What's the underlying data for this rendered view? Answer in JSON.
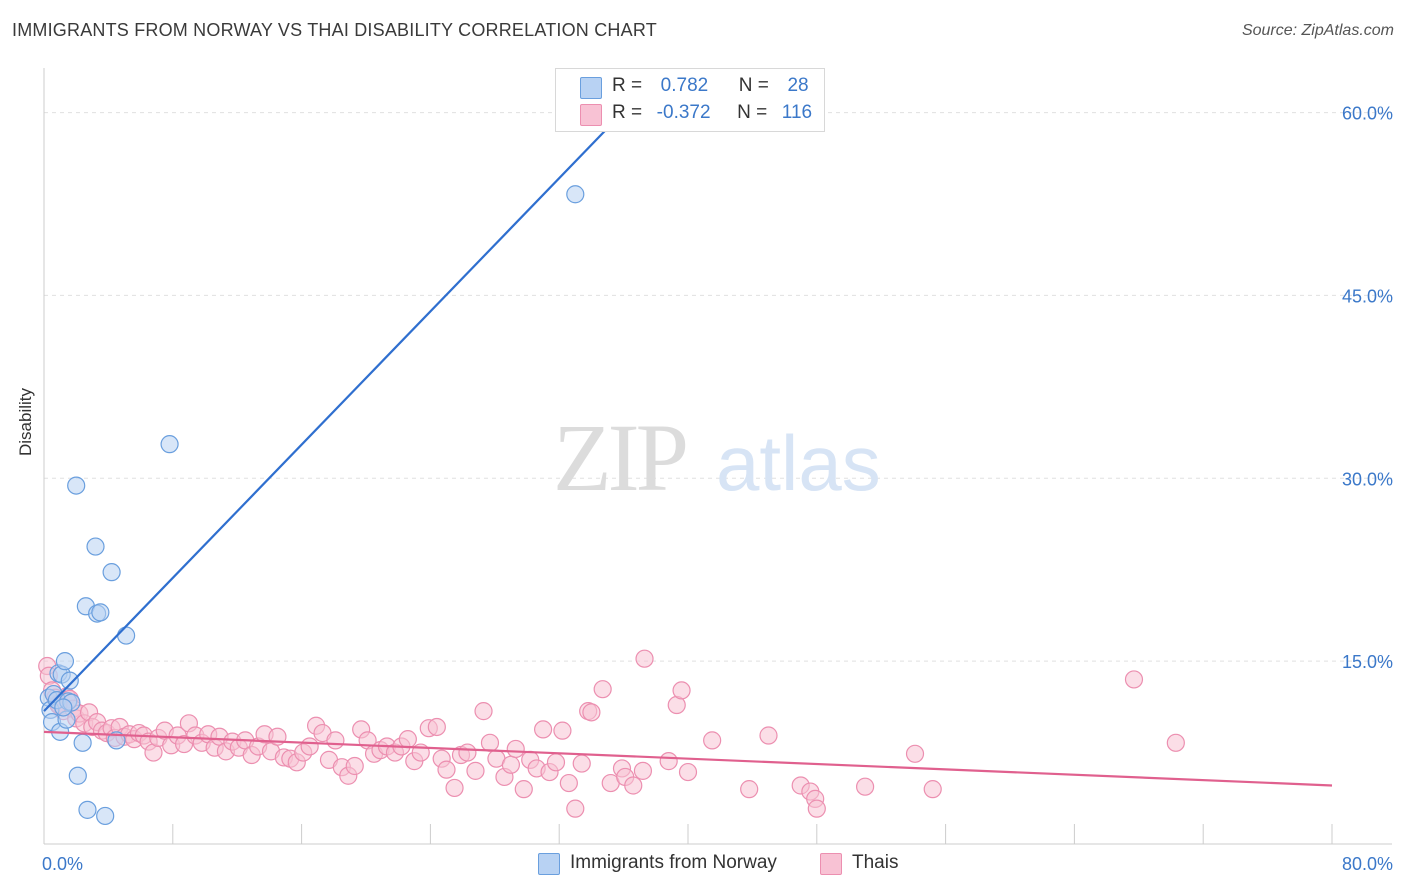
{
  "header": {
    "title": "IMMIGRANTS FROM NORWAY VS THAI DISABILITY CORRELATION CHART",
    "source": "Source: ZipAtlas.com"
  },
  "watermark": {
    "zip": "ZIP",
    "atlas": "atlas"
  },
  "legend": {
    "rows": [
      {
        "r_label": "R =",
        "r_value": "0.782",
        "n_label": "N =",
        "n_value": "28"
      },
      {
        "r_label": "R =",
        "r_value": "-0.372",
        "n_label": "N =",
        "n_value": "116"
      }
    ]
  },
  "colors": {
    "norway": "#6a9fde",
    "norway_fill": "#b8d2f3",
    "norway_line": "#2f6fcf",
    "thai": "#ec8fb0",
    "thai_fill": "#f8c2d4",
    "thai_line": "#e0608e",
    "tick_text": "#3b78c9",
    "grid": "#e0e0e0"
  },
  "chart_data": {
    "type": "scatter",
    "title": "IMMIGRANTS FROM NORWAY VS THAI DISABILITY CORRELATION CHART",
    "xlabel": "",
    "ylabel": "Disability",
    "xlim": [
      0,
      80
    ],
    "ylim": [
      0,
      63
    ],
    "x_tick_labels": [
      "0.0%",
      "80.0%"
    ],
    "y_ticks": [
      15,
      30,
      45,
      60
    ],
    "y_tick_labels": [
      "15.0%",
      "30.0%",
      "45.0%",
      "60.0%"
    ],
    "grid": true,
    "legend_position": "top-center",
    "series": [
      {
        "name": "Immigrants from Norway",
        "r": 0.782,
        "n": 28,
        "trend": {
          "x": [
            0,
            35.5
          ],
          "y": [
            10.9,
            59.4
          ]
        },
        "points": [
          [
            0.3,
            12.0
          ],
          [
            0.4,
            11.0
          ],
          [
            0.5,
            10.0
          ],
          [
            0.6,
            12.3
          ],
          [
            0.8,
            11.8
          ],
          [
            0.9,
            14.0
          ],
          [
            1.0,
            9.2
          ],
          [
            1.1,
            13.9
          ],
          [
            1.3,
            15.0
          ],
          [
            1.4,
            10.2
          ],
          [
            1.5,
            11.7
          ],
          [
            1.6,
            13.4
          ],
          [
            1.7,
            11.6
          ],
          [
            2.0,
            29.4
          ],
          [
            2.1,
            5.6
          ],
          [
            2.4,
            8.3
          ],
          [
            2.7,
            2.8
          ],
          [
            3.2,
            24.4
          ],
          [
            2.6,
            19.5
          ],
          [
            3.3,
            18.9
          ],
          [
            3.5,
            19.0
          ],
          [
            3.8,
            2.3
          ],
          [
            4.2,
            22.3
          ],
          [
            4.5,
            8.5
          ],
          [
            5.1,
            17.1
          ],
          [
            7.8,
            32.8
          ],
          [
            33.0,
            53.3
          ],
          [
            1.2,
            11.2
          ]
        ]
      },
      {
        "name": "Thais",
        "r": -0.372,
        "n": 116,
        "trend": {
          "x": [
            0,
            80
          ],
          "y": [
            9.2,
            4.8
          ]
        },
        "points": [
          [
            0.2,
            14.6
          ],
          [
            0.3,
            13.8
          ],
          [
            0.5,
            12.6
          ],
          [
            0.7,
            12.0
          ],
          [
            0.9,
            11.5
          ],
          [
            1.0,
            11.3
          ],
          [
            1.2,
            10.9
          ],
          [
            1.4,
            12.1
          ],
          [
            1.6,
            11.9
          ],
          [
            1.8,
            11.1
          ],
          [
            2.0,
            10.3
          ],
          [
            2.2,
            10.7
          ],
          [
            2.5,
            9.9
          ],
          [
            2.8,
            10.8
          ],
          [
            3.0,
            9.6
          ],
          [
            3.3,
            10.0
          ],
          [
            3.6,
            9.3
          ],
          [
            3.9,
            9.1
          ],
          [
            4.2,
            9.5
          ],
          [
            4.4,
            8.7
          ],
          [
            4.7,
            9.6
          ],
          [
            5.0,
            8.8
          ],
          [
            5.3,
            9.0
          ],
          [
            5.6,
            8.6
          ],
          [
            5.9,
            9.1
          ],
          [
            6.2,
            8.9
          ],
          [
            6.5,
            8.4
          ],
          [
            6.8,
            7.5
          ],
          [
            7.1,
            8.7
          ],
          [
            7.5,
            9.3
          ],
          [
            7.9,
            8.1
          ],
          [
            8.3,
            8.9
          ],
          [
            8.7,
            8.2
          ],
          [
            9.0,
            9.9
          ],
          [
            9.4,
            8.9
          ],
          [
            9.8,
            8.3
          ],
          [
            10.2,
            9.0
          ],
          [
            10.6,
            7.9
          ],
          [
            10.9,
            8.8
          ],
          [
            11.3,
            7.6
          ],
          [
            11.7,
            8.4
          ],
          [
            12.1,
            7.9
          ],
          [
            12.5,
            8.5
          ],
          [
            12.9,
            7.3
          ],
          [
            13.3,
            8.0
          ],
          [
            13.7,
            9.0
          ],
          [
            14.1,
            7.6
          ],
          [
            14.5,
            8.8
          ],
          [
            14.9,
            7.1
          ],
          [
            15.3,
            7.0
          ],
          [
            15.7,
            6.7
          ],
          [
            16.1,
            7.5
          ],
          [
            16.5,
            8.0
          ],
          [
            16.9,
            9.7
          ],
          [
            17.3,
            9.1
          ],
          [
            17.7,
            6.9
          ],
          [
            18.1,
            8.5
          ],
          [
            18.5,
            6.3
          ],
          [
            18.9,
            5.6
          ],
          [
            19.3,
            6.4
          ],
          [
            19.7,
            9.4
          ],
          [
            20.1,
            8.5
          ],
          [
            20.5,
            7.4
          ],
          [
            20.9,
            7.7
          ],
          [
            21.3,
            8.0
          ],
          [
            21.8,
            7.5
          ],
          [
            22.2,
            8.0
          ],
          [
            22.6,
            8.6
          ],
          [
            23.0,
            6.8
          ],
          [
            23.4,
            7.5
          ],
          [
            23.9,
            9.5
          ],
          [
            24.4,
            9.6
          ],
          [
            24.7,
            7.0
          ],
          [
            25.0,
            6.1
          ],
          [
            25.5,
            4.6
          ],
          [
            25.9,
            7.3
          ],
          [
            26.3,
            7.5
          ],
          [
            26.8,
            6.0
          ],
          [
            27.3,
            10.9
          ],
          [
            27.7,
            8.3
          ],
          [
            28.1,
            7.0
          ],
          [
            28.6,
            5.5
          ],
          [
            29.0,
            6.5
          ],
          [
            29.3,
            7.8
          ],
          [
            29.8,
            4.5
          ],
          [
            30.2,
            6.9
          ],
          [
            30.6,
            6.2
          ],
          [
            31.0,
            9.4
          ],
          [
            31.4,
            5.9
          ],
          [
            31.8,
            6.7
          ],
          [
            32.2,
            9.3
          ],
          [
            32.6,
            5.0
          ],
          [
            33.0,
            2.9
          ],
          [
            33.4,
            6.6
          ],
          [
            33.8,
            10.9
          ],
          [
            34.0,
            10.8
          ],
          [
            34.7,
            12.7
          ],
          [
            35.2,
            5.0
          ],
          [
            35.9,
            6.2
          ],
          [
            36.1,
            5.5
          ],
          [
            36.6,
            4.8
          ],
          [
            37.2,
            6.0
          ],
          [
            37.3,
            15.2
          ],
          [
            38.8,
            6.8
          ],
          [
            39.3,
            11.4
          ],
          [
            39.6,
            12.6
          ],
          [
            40.0,
            5.9
          ],
          [
            41.5,
            8.5
          ],
          [
            43.8,
            4.5
          ],
          [
            45.0,
            8.9
          ],
          [
            47.0,
            4.8
          ],
          [
            47.6,
            4.3
          ],
          [
            47.9,
            3.7
          ],
          [
            48.0,
            2.9
          ],
          [
            51.0,
            4.7
          ],
          [
            54.1,
            7.4
          ],
          [
            55.2,
            4.5
          ],
          [
            67.7,
            13.5
          ],
          [
            70.3,
            8.3
          ],
          [
            0.9,
            11.4
          ]
        ]
      }
    ]
  }
}
